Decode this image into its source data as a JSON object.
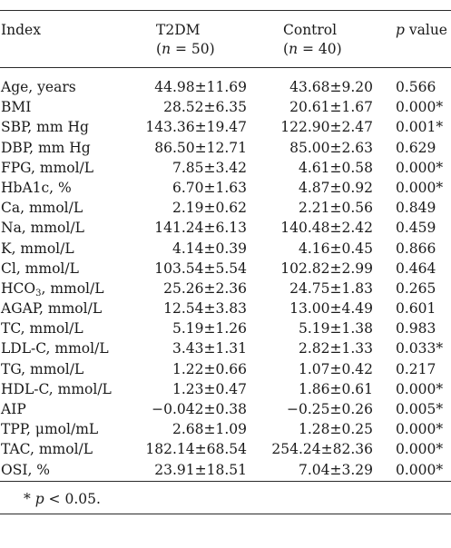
{
  "table": {
    "headers": {
      "index": "Index",
      "t2dm": "T2DM",
      "t2dm_n_label": "n",
      "t2dm_n_value": " = 50)",
      "control": "Control",
      "control_n_label": "n",
      "control_n_value": " = 40)",
      "p_label": "p",
      "p_suffix": " value"
    },
    "rows": [
      {
        "index": "Age, years",
        "t2dm": "44.98±11.69",
        "control": "43.68±9.20",
        "p": "0.566"
      },
      {
        "index": "BMI",
        "t2dm": "28.52±6.35",
        "control": "20.61±1.67",
        "p": "0.000*"
      },
      {
        "index": "SBP, mm Hg",
        "t2dm": "143.36±19.47",
        "control": "122.90±2.47",
        "p": "0.001*"
      },
      {
        "index": "DBP, mm Hg",
        "t2dm": "86.50±12.71",
        "control": "85.00±2.63",
        "p": "0.629"
      },
      {
        "index": "FPG, mmol/L",
        "t2dm": "7.85±3.42",
        "control": "4.61±0.58",
        "p": "0.000*"
      },
      {
        "index": "HbA1c, %",
        "t2dm": "6.70±1.63",
        "control": "4.87±0.92",
        "p": "0.000*"
      },
      {
        "index": "Ca, mmol/L",
        "t2dm": "2.19±0.62",
        "control": "2.21±0.56",
        "p": "0.849"
      },
      {
        "index": "Na, mmol/L",
        "t2dm": "141.24±6.13",
        "control": "140.48±2.42",
        "p": "0.459"
      },
      {
        "index": "K, mmol/L",
        "t2dm": "4.14±0.39",
        "control": "4.16±0.45",
        "p": "0.866"
      },
      {
        "index": "Cl, mmol/L",
        "t2dm": "103.54±5.54",
        "control": "102.82±2.99",
        "p": "0.464"
      },
      {
        "index_pre": "HCO",
        "index_sub": "3",
        "index_post": ", mmol/L",
        "t2dm": "25.26±2.36",
        "control": "24.75±1.83",
        "p": "0.265"
      },
      {
        "index": "AGAP, mmol/L",
        "t2dm": "12.54±3.83",
        "control": "13.00±4.49",
        "p": "0.601"
      },
      {
        "index": "TC, mmol/L",
        "t2dm": "5.19±1.26",
        "control": "5.19±1.38",
        "p": "0.983"
      },
      {
        "index": "LDL-C, mmol/L",
        "t2dm": "3.43±1.31",
        "control": "2.82±1.33",
        "p": "0.033*"
      },
      {
        "index": "TG, mmol/L",
        "t2dm": "1.22±0.66",
        "control": "1.07±0.42",
        "p": "0.217"
      },
      {
        "index": "HDL-C, mmol/L",
        "t2dm": "1.23±0.47",
        "control": "1.86±0.61",
        "p": "0.000*"
      },
      {
        "index": "AIP",
        "t2dm": "−0.042±0.38",
        "control": "−0.25±0.26",
        "p": "0.005*"
      },
      {
        "index": "TPP, μmol/mL",
        "t2dm": "2.68±1.09",
        "control": "1.28±0.25",
        "p": "0.000*"
      },
      {
        "index": "TAC, mmol/L",
        "t2dm": "182.14±68.54",
        "control": "254.24±82.36",
        "p": "0.000*"
      },
      {
        "index": "OSI, %",
        "t2dm": "23.91±18.51",
        "control": "7.04±3.29",
        "p": "0.000*"
      }
    ],
    "footnote": {
      "star": "* ",
      "p_label": "p",
      "rest": " < 0.05."
    }
  }
}
